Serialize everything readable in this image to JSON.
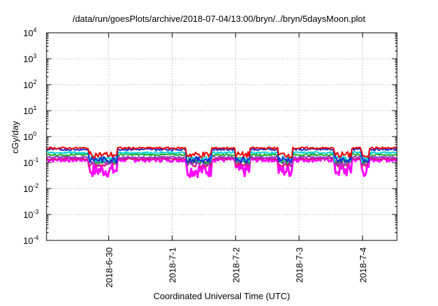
{
  "chart_data": {
    "type": "line",
    "title": "/data/run/goesPlots/archive/2018-07-04/13:00/bryn/../bryn/5daysMoon.plot",
    "xlabel": "Coordinated Universal Time (UTC)",
    "ylabel": "cGy/day",
    "y_scale": "log",
    "ylim": [
      0.0001,
      10000
    ],
    "y_ticks": [
      {
        "base": "10",
        "exp": "4"
      },
      {
        "base": "10",
        "exp": "3"
      },
      {
        "base": "10",
        "exp": "2"
      },
      {
        "base": "10",
        "exp": "1"
      },
      {
        "base": "10",
        "exp": "0"
      },
      {
        "base": "10",
        "exp": "-1"
      },
      {
        "base": "10",
        "exp": "-2"
      },
      {
        "base": "10",
        "exp": "-3"
      },
      {
        "base": "10",
        "exp": "-4"
      }
    ],
    "x_range_days": [
      "2018-06-29T00:30",
      "2018-07-04T13:00"
    ],
    "x_tick_labels": [
      "2018-6-30",
      "2018-7-1",
      "2018-7-2",
      "2018-7-3",
      "2018-7-4"
    ],
    "x_tick_dates": [
      "2018-06-30",
      "2018-07-01",
      "2018-07-02",
      "2018-07-03",
      "2018-07-04"
    ],
    "grid": true,
    "legend": "none",
    "series": [
      {
        "color": "#ee0000",
        "level": 0.36,
        "dip_level": 0.2
      },
      {
        "color": "#1a2bd8",
        "level": 0.32,
        "dip_level": 0.13
      },
      {
        "color": "#00d3d3",
        "level": 0.24,
        "dip_level": 0.14
      },
      {
        "color": "#22aa22",
        "level": 0.2,
        "dip_level": 0.12
      },
      {
        "color": "#9a3acb",
        "level": 0.16,
        "dip_level": 0.1
      },
      {
        "color": "#dd1177",
        "level": 0.14,
        "dip_level": 0.09
      },
      {
        "color": "#ff00ff",
        "level": 0.13,
        "dip_level": 0.05
      }
    ]
  }
}
